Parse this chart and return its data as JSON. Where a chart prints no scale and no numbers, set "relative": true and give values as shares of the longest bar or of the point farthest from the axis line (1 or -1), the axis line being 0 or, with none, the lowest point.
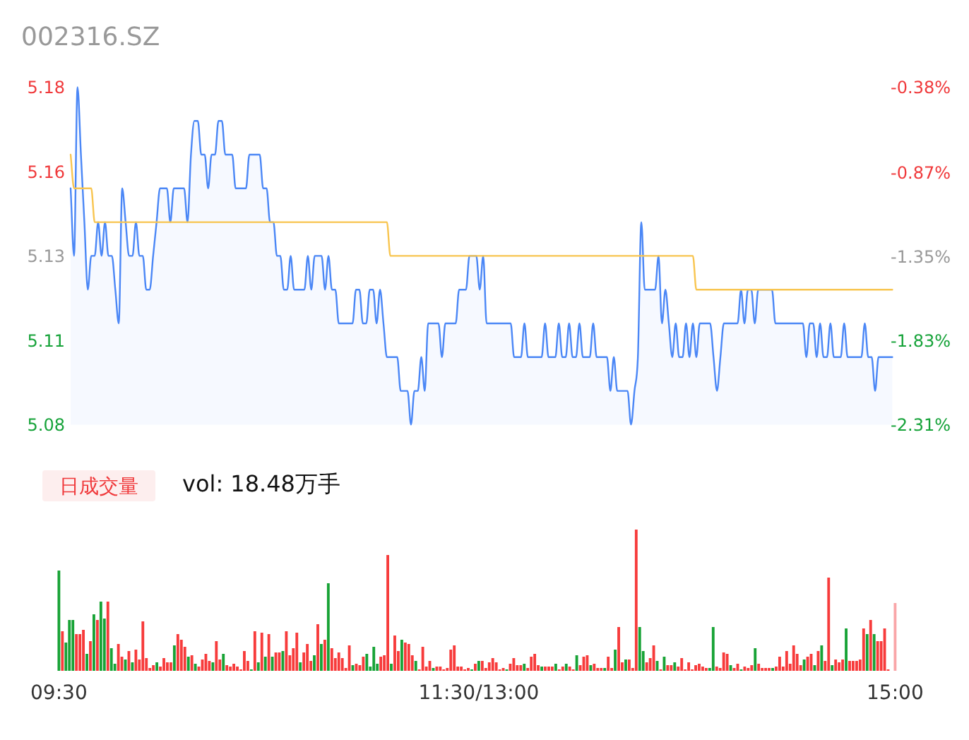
{
  "chart_data": [
    {
      "type": "line",
      "title": "002316.SZ",
      "categories": [
        null,
        null,
        null,
        null,
        null,
        null,
        null,
        null,
        null,
        null,
        null,
        null,
        null,
        null,
        null,
        null,
        null,
        null,
        null,
        null,
        null,
        null,
        null,
        null,
        null,
        null,
        null,
        null,
        null,
        null,
        null,
        null,
        null,
        null,
        null,
        null,
        null,
        null,
        null,
        null,
        null,
        null,
        null,
        null,
        null,
        null,
        null,
        null,
        null,
        null,
        null,
        null,
        null,
        null,
        null,
        null,
        null,
        null,
        null,
        null,
        null,
        null,
        null,
        null,
        null,
        null,
        null,
        null,
        null,
        null,
        null,
        null,
        null,
        null,
        null,
        null,
        null,
        null,
        null,
        null,
        null,
        null,
        null,
        null,
        null,
        null,
        null,
        null,
        null,
        null,
        null,
        null,
        null,
        null,
        null,
        null,
        null,
        null,
        null,
        null,
        null,
        null,
        null,
        null,
        null,
        null,
        null,
        null,
        null,
        null,
        null,
        null,
        null,
        null,
        null,
        null,
        null,
        null,
        null,
        null,
        null,
        null,
        null,
        null,
        null,
        null,
        null,
        null,
        null,
        null,
        null,
        null,
        null,
        null,
        null,
        null,
        null,
        null,
        null,
        null,
        null,
        null,
        null,
        null,
        null,
        null,
        null,
        null,
        null,
        null,
        null,
        null,
        null,
        null,
        null,
        null,
        null,
        null,
        null,
        null,
        null,
        null,
        null,
        null,
        null,
        null,
        null,
        null,
        null,
        null,
        null,
        null,
        null,
        null,
        null,
        null,
        null,
        null,
        null,
        null,
        null,
        null,
        null,
        null,
        null,
        null,
        null,
        null,
        null,
        null,
        null,
        null,
        null,
        null,
        null,
        null,
        null,
        null,
        null,
        null,
        null,
        null,
        null,
        null,
        null,
        null,
        null,
        null,
        null,
        null,
        null,
        null,
        null,
        null,
        null,
        null,
        null,
        null,
        null,
        null,
        null,
        null,
        null,
        null,
        null,
        null,
        null,
        null,
        null,
        null,
        null,
        null,
        null,
        null,
        null,
        null,
        null,
        null,
        null,
        null
      ],
      "ylim": [
        5.08,
        5.18
      ],
      "yticks": [
        5.08,
        {
          "value": 5.105,
          "label": "5.11"
        },
        5.13,
        {
          "value": 5.155,
          "label": "5.16"
        },
        5.18
      ],
      "y2lim": [
        -2.31,
        -0.38
      ],
      "y2ticks": [
        {
          "value": -2.31,
          "label": "-2.31%"
        },
        {
          "value": -1.83,
          "label": "-1.83%"
        },
        {
          "value": -1.35,
          "label": "-1.35%"
        },
        {
          "value": -0.87,
          "label": "-0.87%"
        },
        {
          "value": -0.38,
          "label": "-0.38%"
        }
      ],
      "tick_labels": "y",
      "series": [
        {
          "type": "area",
          "color": "#4b87f6",
          "values": [
            5.15,
            5.13,
            5.18,
            5.16,
            5.14,
            5.12,
            5.13,
            5.13,
            5.14,
            5.13,
            5.14,
            5.13,
            5.13,
            5.12,
            5.11,
            5.15,
            5.14,
            5.13,
            5.13,
            5.14,
            5.13,
            5.13,
            5.12,
            5.12,
            5.13,
            5.14,
            5.15,
            5.15,
            5.15,
            5.14,
            5.15,
            5.15,
            5.15,
            5.15,
            5.14,
            5.16,
            5.17,
            5.17,
            5.16,
            5.16,
            5.15,
            5.16,
            5.16,
            5.17,
            5.17,
            5.16,
            5.16,
            5.16,
            5.15,
            5.15,
            5.15,
            5.15,
            5.16,
            5.16,
            5.16,
            5.16,
            5.15,
            5.15,
            5.14,
            5.14,
            5.13,
            5.13,
            5.12,
            5.12,
            5.13,
            5.12,
            5.12,
            5.12,
            5.12,
            5.13,
            5.12,
            5.13,
            5.13,
            5.13,
            5.12,
            5.13,
            5.12,
            5.12,
            5.11,
            5.11,
            5.11,
            5.11,
            5.11,
            5.12,
            5.12,
            5.11,
            5.11,
            5.12,
            5.12,
            5.11,
            5.12,
            5.11,
            5.1,
            5.1,
            5.1,
            5.1,
            5.09,
            5.09,
            5.09,
            5.08,
            5.09,
            5.09,
            5.1,
            5.09,
            5.11,
            5.11,
            5.11,
            5.11,
            5.1,
            5.11,
            5.11,
            5.11,
            5.11,
            5.12,
            5.12,
            5.12,
            5.13,
            5.13,
            5.13,
            5.12,
            5.13,
            5.11,
            5.11,
            5.11,
            5.11,
            5.11,
            5.11,
            5.11,
            5.11,
            5.1,
            5.1,
            5.1,
            5.11,
            5.1,
            5.1,
            5.1,
            5.1,
            5.1,
            5.11,
            5.1,
            5.1,
            5.1,
            5.11,
            5.1,
            5.1,
            5.11,
            5.1,
            5.1,
            5.11,
            5.1,
            5.1,
            5.1,
            5.11,
            5.1,
            5.1,
            5.1,
            5.1,
            5.09,
            5.1,
            5.09,
            5.09,
            5.09,
            5.09,
            5.08,
            5.09,
            5.1,
            5.14,
            5.12,
            5.12,
            5.12,
            5.12,
            5.13,
            5.11,
            5.12,
            5.11,
            5.1,
            5.11,
            5.1,
            5.1,
            5.11,
            5.1,
            5.11,
            5.1,
            5.11,
            5.11,
            5.11,
            5.11,
            5.1,
            5.09,
            5.1,
            5.11,
            5.11,
            5.11,
            5.11,
            5.11,
            5.12,
            5.11,
            5.12,
            5.12,
            5.11,
            5.12,
            5.12,
            5.12,
            5.12,
            5.12,
            5.11,
            5.11,
            5.11,
            5.11,
            5.11,
            5.11,
            5.11,
            5.11,
            5.11,
            5.1,
            5.11,
            5.11,
            5.1,
            5.11,
            5.1,
            5.1,
            5.11,
            5.1,
            5.1,
            5.1,
            5.11,
            5.1,
            5.1,
            5.1,
            5.1,
            5.1,
            5.11,
            5.1,
            5.1,
            5.09,
            5.1,
            5.1,
            5.1,
            5.1,
            5.1
          ]
        },
        {
          "type": "line",
          "color": "#f8c550",
          "values": [
            5.16,
            5.15,
            5.15,
            5.15,
            5.15,
            5.15,
            5.15,
            5.14,
            5.14,
            5.14,
            5.14,
            5.14,
            5.14,
            5.14,
            5.14,
            5.14,
            5.14,
            5.14,
            5.14,
            5.14,
            5.14,
            5.14,
            5.14,
            5.14,
            5.14,
            5.14,
            5.14,
            5.14,
            5.14,
            5.14,
            5.14,
            5.14,
            5.14,
            5.14,
            5.14,
            5.14,
            5.14,
            5.14,
            5.14,
            5.14,
            5.14,
            5.14,
            5.14,
            5.14,
            5.14,
            5.14,
            5.14,
            5.14,
            5.14,
            5.14,
            5.14,
            5.14,
            5.14,
            5.14,
            5.14,
            5.14,
            5.14,
            5.14,
            5.14,
            5.14,
            5.14,
            5.14,
            5.14,
            5.14,
            5.14,
            5.14,
            5.14,
            5.14,
            5.14,
            5.14,
            5.14,
            5.14,
            5.14,
            5.14,
            5.14,
            5.14,
            5.14,
            5.14,
            5.14,
            5.14,
            5.14,
            5.14,
            5.14,
            5.14,
            5.14,
            5.14,
            5.14,
            5.14,
            5.14,
            5.14,
            5.14,
            5.14,
            5.14,
            5.13,
            5.13,
            5.13,
            5.13,
            5.13,
            5.13,
            5.13,
            5.13,
            5.13,
            5.13,
            5.13,
            5.13,
            5.13,
            5.13,
            5.13,
            5.13,
            5.13,
            5.13,
            5.13,
            5.13,
            5.13,
            5.13,
            5.13,
            5.13,
            5.13,
            5.13,
            5.13,
            5.13,
            5.13,
            5.13,
            5.13,
            5.13,
            5.13,
            5.13,
            5.13,
            5.13,
            5.13,
            5.13,
            5.13,
            5.13,
            5.13,
            5.13,
            5.13,
            5.13,
            5.13,
            5.13,
            5.13,
            5.13,
            5.13,
            5.13,
            5.13,
            5.13,
            5.13,
            5.13,
            5.13,
            5.13,
            5.13,
            5.13,
            5.13,
            5.13,
            5.13,
            5.13,
            5.13,
            5.13,
            5.13,
            5.13,
            5.13,
            5.13,
            5.13,
            5.13,
            5.13,
            5.13,
            5.13,
            5.13,
            5.13,
            5.13,
            5.13,
            5.13,
            5.13,
            5.13,
            5.13,
            5.13,
            5.13,
            5.13,
            5.13,
            5.13,
            5.13,
            5.13,
            5.13,
            5.12,
            5.12,
            5.12,
            5.12,
            5.12,
            5.12,
            5.12,
            5.12,
            5.12,
            5.12,
            5.12,
            5.12,
            5.12,
            5.12,
            5.12,
            5.12,
            5.12,
            5.12,
            5.12,
            5.12,
            5.12,
            5.12,
            5.12,
            5.12,
            5.12,
            5.12,
            5.12,
            5.12,
            5.12,
            5.12,
            5.12,
            5.12,
            5.12,
            5.12,
            5.12,
            5.12,
            5.12,
            5.12,
            5.12,
            5.12,
            5.12,
            5.12,
            5.12,
            5.12,
            5.12,
            5.12,
            5.12,
            5.12,
            5.12,
            5.12,
            5.12,
            5.12,
            5.12,
            5.12,
            5.12,
            5.12,
            5.12,
            5.12
          ]
        }
      ]
    },
    {
      "type": "bar",
      "title": "日成交量",
      "subtitle": "vol: 18.48万手",
      "categories": [
        "09:30",
        null,
        null,
        null,
        null,
        null,
        null,
        null,
        null,
        null,
        null,
        null,
        null,
        null,
        null,
        null,
        null,
        null,
        null,
        null,
        null,
        null,
        null,
        null,
        null,
        null,
        null,
        null,
        null,
        null,
        null,
        null,
        null,
        null,
        null,
        null,
        null,
        null,
        null,
        null,
        null,
        null,
        null,
        null,
        null,
        null,
        null,
        null,
        null,
        null,
        null,
        null,
        null,
        null,
        null,
        null,
        null,
        null,
        null,
        null,
        null,
        null,
        null,
        null,
        null,
        null,
        null,
        null,
        null,
        null,
        null,
        null,
        null,
        null,
        null,
        null,
        null,
        null,
        null,
        null,
        null,
        null,
        null,
        null,
        null,
        null,
        null,
        null,
        null,
        null,
        null,
        null,
        null,
        null,
        null,
        null,
        null,
        null,
        null,
        null,
        null,
        null,
        null,
        null,
        null,
        null,
        null,
        null,
        null,
        null,
        null,
        null,
        null,
        null,
        null,
        null,
        null,
        null,
        null,
        null,
        "11:30/13:00",
        null,
        null,
        null,
        null,
        null,
        null,
        null,
        null,
        null,
        null,
        null,
        null,
        null,
        null,
        null,
        null,
        null,
        null,
        null,
        null,
        null,
        null,
        null,
        null,
        null,
        null,
        null,
        null,
        null,
        null,
        null,
        null,
        null,
        null,
        null,
        null,
        null,
        null,
        null,
        null,
        null,
        null,
        null,
        null,
        null,
        null,
        null,
        null,
        null,
        null,
        null,
        null,
        null,
        null,
        null,
        null,
        null,
        null,
        null,
        null,
        null,
        null,
        null,
        null,
        null,
        null,
        null,
        null,
        null,
        null,
        null,
        null,
        null,
        null,
        null,
        null,
        null,
        null,
        null,
        null,
        null,
        null,
        null,
        null,
        null,
        null,
        null,
        null,
        null,
        null,
        null,
        null,
        null,
        null,
        null,
        null,
        null,
        null,
        null,
        null,
        null,
        null,
        null,
        null,
        null,
        null,
        null,
        null,
        null,
        null,
        null,
        null,
        null,
        null,
        null,
        null,
        null,
        null,
        "15:00"
      ],
      "tick_labels": "x",
      "relative": true,
      "values": [
        0.71,
        0.28,
        0.2,
        0.36,
        0.36,
        0.26,
        0.26,
        0.29,
        0.12,
        0.21,
        0.4,
        0.36,
        0.49,
        0.37,
        0.49,
        0.16,
        0.05,
        0.19,
        0.1,
        0.08,
        0.14,
        0.06,
        0.15,
        0.08,
        0.35,
        0.09,
        0.02,
        0.04,
        0.06,
        0.03,
        0.09,
        0.06,
        0.06,
        0.18,
        0.26,
        0.22,
        0.17,
        0.1,
        0.11,
        0.05,
        0.03,
        0.08,
        0.12,
        0.07,
        0.06,
        0.21,
        0.08,
        0.12,
        0.04,
        0.03,
        0.05,
        0.03,
        0.01,
        0.14,
        0.07,
        0.01,
        0.28,
        0.06,
        0.27,
        0.1,
        0.26,
        0.1,
        0.13,
        0.13,
        0.14,
        0.28,
        0.11,
        0.16,
        0.27,
        0.06,
        0.13,
        0.19,
        0.07,
        0.11,
        0.33,
        0.19,
        0.22,
        0.62,
        0.16,
        0.09,
        0.13,
        0.09,
        0.02,
        0.18,
        0.04,
        0.05,
        0.04,
        0.1,
        0.12,
        0.03,
        0.17,
        0.05,
        0.1,
        0.11,
        0.82,
        0.05,
        0.25,
        0.14,
        0.22,
        0.2,
        0.19,
        0.11,
        0.07,
        0.01,
        0.17,
        0.03,
        0.07,
        0.02,
        0.03,
        0.03,
        0.01,
        0.02,
        0.15,
        0.18,
        0.03,
        0.03,
        0.01,
        0.02,
        0.01,
        0.05,
        0.07,
        0.07,
        0.02,
        0.06,
        0.09,
        0.06,
        0.01,
        0.02,
        0.01,
        0.05,
        0.09,
        0.04,
        0.04,
        0.05,
        0.02,
        0.1,
        0.12,
        0.04,
        0.03,
        0.03,
        0.03,
        0.03,
        0.05,
        0.01,
        0.03,
        0.05,
        0.03,
        0.01,
        0.11,
        0.04,
        0.1,
        0.11,
        0.04,
        0.05,
        0.02,
        0.02,
        0.02,
        0.1,
        0.02,
        0.15,
        0.31,
        0.06,
        0.08,
        0.08,
        0.02,
        1,
        0.31,
        0.14,
        0.06,
        0.09,
        0.18,
        0.07,
        0.01,
        0.1,
        0.04,
        0.04,
        0.06,
        0.03,
        0.09,
        0.01,
        0.06,
        0.01,
        0.04,
        0.05,
        0.03,
        0.02,
        0.02,
        0.31,
        0.03,
        0.02,
        0.13,
        0.12,
        0.04,
        0.02,
        0.05,
        0.01,
        0.03,
        0.02,
        0.04,
        0.16,
        0.05,
        0.02,
        0.02,
        0.02,
        0.02,
        0.03,
        0.1,
        0.03,
        0.14,
        0.05,
        0.18,
        0.12,
        0.04,
        0.08,
        0.1,
        0.12,
        0.04,
        0.14,
        0.18,
        0.07,
        0.66,
        0.04,
        0.08,
        0.06,
        0.08,
        0.3,
        0.07,
        0.07,
        0.07,
        0.08,
        0.3,
        0.26,
        0.36,
        0.26,
        0.21,
        0.21,
        0.3,
        0.01,
        null,
        0.48
      ],
      "colors": [
        "#18a336",
        "#f73b3b",
        "#18a336",
        "#18a336",
        "#18a336",
        "#f73b3b",
        "#f73b3b",
        "#f73b3b",
        "#18a336",
        "#f73b3b",
        "#18a336",
        "#f73b3b",
        "#18a336",
        "#18a336",
        "#f73b3b",
        "#18a336",
        "#18a336",
        "#f73b3b",
        "#f73b3b",
        "#18a336",
        "#f73b3b",
        "#18a336",
        "#f73b3b",
        "#f73b3b",
        "#f73b3b",
        "#f73b3b",
        "#f73b3b",
        "#f73b3b",
        "#18a336",
        "#f73b3b",
        "#f73b3b",
        "#f73b3b",
        "#f73b3b",
        "#18a336",
        "#f73b3b",
        "#f73b3b",
        "#f73b3b",
        "#18a336",
        "#f73b3b",
        "#18a336",
        "#f73b3b",
        "#f73b3b",
        "#f73b3b",
        "#f73b3b",
        "#18a336",
        "#f73b3b",
        "#f73b3b",
        "#18a336",
        "#f73b3b",
        "#f73b3b",
        "#f73b3b",
        "#f73b3b",
        "#f73b3b",
        "#f73b3b",
        "#f73b3b",
        "#18a336",
        "#f73b3b",
        "#18a336",
        "#f73b3b",
        "#18a336",
        "#f73b3b",
        "#18a336",
        "#f73b3b",
        "#f73b3b",
        "#18a336",
        "#f73b3b",
        "#f73b3b",
        "#f73b3b",
        "#f73b3b",
        "#18a336",
        "#f73b3b",
        "#f73b3b",
        "#f73b3b",
        "#18a336",
        "#f73b3b",
        "#18a336",
        "#f73b3b",
        "#18a336",
        "#f73b3b",
        "#f73b3b",
        "#f73b3b",
        "#f73b3b",
        "#f73b3b",
        "#f73b3b",
        "#18a336",
        "#f73b3b",
        "#f73b3b",
        "#f73b3b",
        "#18a336",
        "#18a336",
        "#18a336",
        "#18a336",
        "#f73b3b",
        "#f73b3b",
        "#f73b3b",
        "#18a336",
        "#f73b3b",
        "#f73b3b",
        "#18a336",
        "#f73b3b",
        "#f73b3b",
        "#f73b3b",
        "#18a336",
        "#f73b3b",
        "#f73b3b",
        "#f73b3b",
        "#f73b3b",
        "#18a336",
        "#f73b3b",
        "#f73b3b",
        "#f73b3b",
        "#f73b3b",
        "#f73b3b",
        "#f73b3b",
        "#f73b3b",
        "#f73b3b",
        "#f73b3b",
        "#f73b3b",
        "#18a336",
        "#f73b3b",
        "#18a336",
        "#f73b3b",
        "#f73b3b",
        "#f73b3b",
        "#f73b3b",
        "#f73b3b",
        "#f73b3b",
        "#f73b3b",
        "#18a336",
        "#f73b3b",
        "#f73b3b",
        "#f73b3b",
        "#f73b3b",
        "#18a336",
        "#f73b3b",
        "#f73b3b",
        "#f73b3b",
        "#f73b3b",
        "#18a336",
        "#f73b3b",
        "#f73b3b",
        "#f73b3b",
        "#18a336",
        "#f73b3b",
        "#f73b3b",
        "#18a336",
        "#f73b3b",
        "#f73b3b",
        "#18a336",
        "#f73b3b",
        "#f73b3b",
        "#f73b3b",
        "#18a336",
        "#f73b3b",
        "#f73b3b",
        "#f73b3b",
        "#18a336",
        "#f73b3b",
        "#f73b3b",
        "#18a336",
        "#f73b3b",
        "#f73b3b",
        "#18a336",
        "#f73b3b",
        "#f73b3b",
        "#f73b3b",
        "#18a336",
        "#18a336",
        "#f73b3b",
        "#f73b3b",
        "#f73b3b",
        "#18a336",
        "#f73b3b",
        "#18a336",
        "#f73b3b",
        "#f73b3b",
        "#18a336",
        "#f73b3b",
        "#f73b3b",
        "#f73b3b",
        "#f73b3b",
        "#f73b3b",
        "#f73b3b",
        "#f73b3b",
        "#f73b3b",
        "#f73b3b",
        "#18a336",
        "#18a336",
        "#f73b3b",
        "#f73b3b",
        "#f73b3b",
        "#f73b3b",
        "#18a336",
        "#f73b3b",
        "#f73b3b",
        "#18a336",
        "#f73b3b",
        "#f73b3b",
        "#f73b3b",
        "#18a336",
        "#f73b3b",
        "#f73b3b",
        "#f73b3b",
        "#f73b3b",
        "#18a336",
        "#f73b3b",
        "#f73b3b",
        "#f73b3b",
        "#f73b3b",
        "#f73b3b",
        "#f73b3b",
        "#f73b3b",
        "#f73b3b",
        "#18a336",
        "#f73b3b",
        "#f73b3b",
        "#18a336",
        "#f73b3b",
        "#18a336",
        "#f73b3b",
        "#f73b3b",
        "#18a336",
        "#f73b3b",
        "#f73b3b",
        "#f73b3b",
        "#18a336",
        "#f73b3b",
        "#f73b3b",
        "#f73b3b",
        "#f73b3b",
        "#f73b3b",
        "#18a336",
        "#f73b3b",
        "#18a336",
        "#f73b3b",
        "#f73b3b",
        "#f73b3b",
        "#f73b3b",
        null,
        "#f9a6a8"
      ]
    }
  ]
}
